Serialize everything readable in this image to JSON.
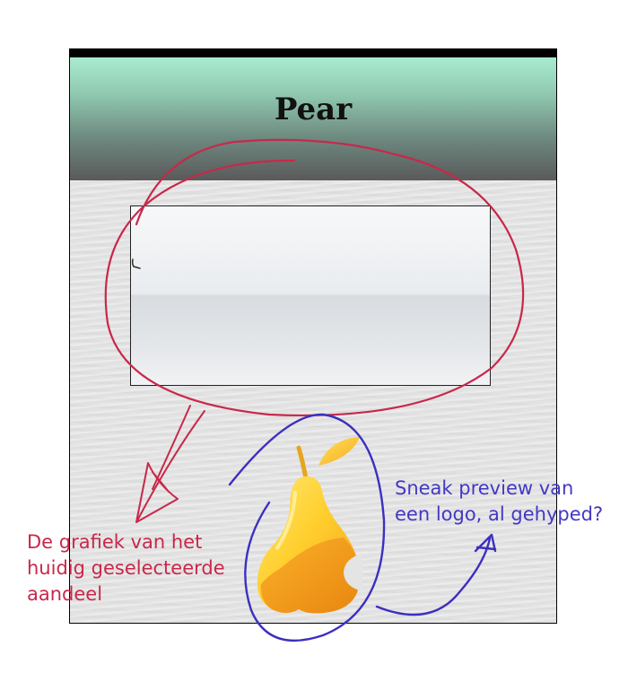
{
  "app": {
    "title": "Pear"
  },
  "annotations": {
    "chart_note_lines": [
      "De grafiek van het",
      "huidig geselecteerde",
      "aandeel"
    ],
    "logo_note_lines": [
      "Sneak preview van",
      "een logo, al gehyped?"
    ]
  },
  "colors": {
    "annotation_red": "#c8284a",
    "annotation_blue": "#4338c4",
    "header_top": "#a8ecd0",
    "header_bottom": "#5a5a5a",
    "pear_yellow": "#ffd23a",
    "pear_orange": "#f7a21b"
  },
  "icons": {
    "logo": "pear-logo-icon",
    "cursor": "cursor-icon"
  }
}
